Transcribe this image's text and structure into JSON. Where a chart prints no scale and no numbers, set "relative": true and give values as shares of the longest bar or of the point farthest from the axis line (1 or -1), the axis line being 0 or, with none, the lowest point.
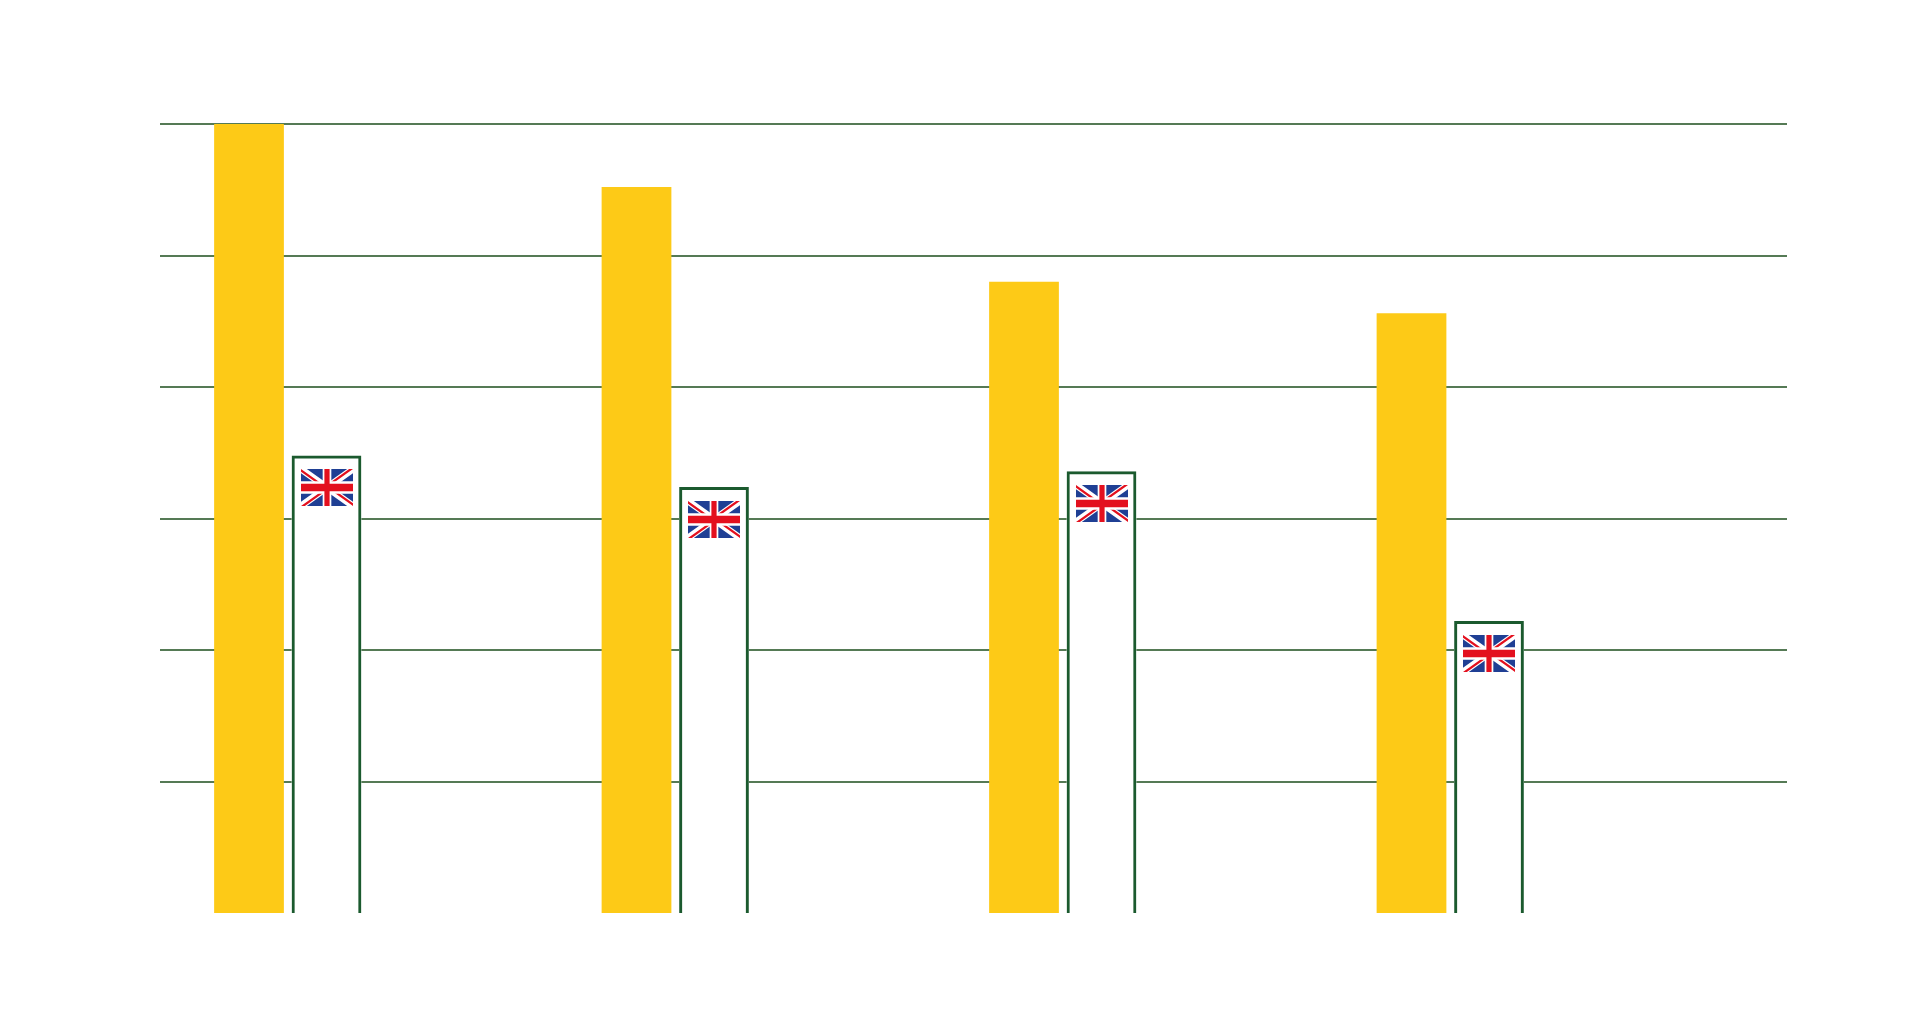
{
  "chart_data": {
    "type": "bar",
    "categories": [
      null,
      null,
      null,
      null
    ],
    "relative": true,
    "series": [
      {
        "color": "#fdca17",
        "values": [
          1,
          0.92,
          0.8,
          0.76
        ]
      },
      {
        "color": "#1b5a2e",
        "values": [
          0.58,
          0.54,
          0.56,
          0.37
        ]
      }
    ],
    "grid": "y",
    "legend": false,
    "tick_labels": false
  }
}
